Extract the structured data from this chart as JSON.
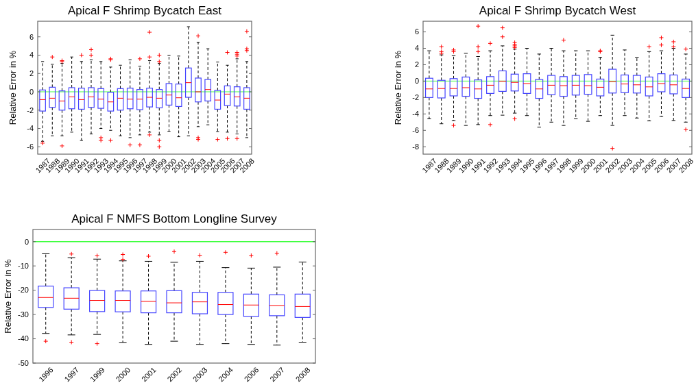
{
  "chart_data": [
    {
      "type": "box",
      "title": "Apical F Shrimp Bycatch East",
      "ylabel": "Relative Error in %",
      "categories": [
        "1987",
        "1988",
        "1989",
        "1990",
        "1991",
        "1992",
        "1993",
        "1994",
        "1995",
        "1996",
        "1997",
        "1998",
        "1999",
        "2000",
        "2001",
        "2002",
        "2003",
        "2004",
        "2005",
        "2006",
        "2007",
        "2008"
      ],
      "ylim": [
        -6.8,
        7.7
      ],
      "yticks": [
        -6,
        -4,
        -2,
        0,
        2,
        4,
        6
      ],
      "ref_lines": [
        {
          "axis": "y",
          "value": 0,
          "color": "#80ff80"
        }
      ],
      "series": [
        {
          "color": "#4444ff",
          "boxes": [
            {
              "low": -5.4,
              "q1": -2.1,
              "median": -0.85,
              "q3": 0.2,
              "high": 3.3,
              "outliers": [
                -5.6
              ]
            },
            {
              "low": -4.8,
              "q1": -1.7,
              "median": -0.7,
              "q3": 0.5,
              "high": 3.0,
              "outliers": [
                3.8
              ]
            },
            {
              "low": -4.8,
              "q1": -2.0,
              "median": -1.0,
              "q3": 0.1,
              "high": 3.1,
              "outliers": [
                3.4,
                3.3,
                -5.9
              ]
            },
            {
              "low": -4.4,
              "q1": -1.85,
              "median": -0.55,
              "q3": 0.45,
              "high": 3.8
            },
            {
              "low": -5.3,
              "q1": -1.9,
              "median": -0.85,
              "q3": 0.4,
              "high": 3.3,
              "outliers": [
                4.0
              ]
            },
            {
              "low": -4.6,
              "q1": -1.7,
              "median": -0.55,
              "q3": 0.45,
              "high": 3.5,
              "outliers": [
                4.0,
                4.6
              ]
            },
            {
              "low": -4.0,
              "q1": -1.8,
              "median": -0.8,
              "q3": 0.35,
              "high": 3.3,
              "outliers": [
                -5.0,
                -5.3
              ]
            },
            {
              "low": -4.2,
              "q1": -2.1,
              "median": -1.1,
              "q3": -0.05,
              "high": 2.7,
              "outliers": [
                3.6,
                3.5,
                -5.3
              ]
            },
            {
              "low": -4.8,
              "q1": -2.0,
              "median": -0.7,
              "q3": 0.35,
              "high": 2.9
            },
            {
              "low": -5.0,
              "q1": -1.85,
              "median": -0.8,
              "q3": 0.4,
              "high": 3.5,
              "outliers": [
                -5.8
              ]
            },
            {
              "low": -4.7,
              "q1": -1.95,
              "median": -0.8,
              "q3": 0.25,
              "high": 2.8,
              "outliers": [
                3.6,
                -5.8
              ]
            },
            {
              "low": -4.4,
              "q1": -1.65,
              "median": -0.6,
              "q3": 0.4,
              "high": 3.4,
              "outliers": [
                6.5,
                3.8,
                -4.7
              ]
            },
            {
              "low": -4.7,
              "q1": -1.75,
              "median": -0.7,
              "q3": 0.25,
              "high": 3.1,
              "outliers": [
                4.0,
                3.3,
                -5.3,
                -6.0
              ]
            },
            {
              "low": -4.3,
              "q1": -1.45,
              "median": -0.35,
              "q3": 0.9,
              "high": 4.0
            },
            {
              "low": -4.9,
              "q1": -1.6,
              "median": -0.65,
              "q3": 0.85,
              "high": 3.9
            },
            {
              "low": -4.8,
              "q1": -0.6,
              "median": 1.0,
              "q3": 2.6,
              "high": 7.1
            },
            {
              "low": -3.8,
              "q1": -1.1,
              "median": 0.0,
              "q3": 1.5,
              "high": 5.4,
              "outliers": [
                6.1,
                -5.0,
                -5.2
              ]
            },
            {
              "low": -3.6,
              "q1": -1.0,
              "median": 0.25,
              "q3": 1.35,
              "high": 4.7
            },
            {
              "low": -4.35,
              "q1": -1.9,
              "median": -0.9,
              "q3": 0.15,
              "high": 3.25,
              "outliers": [
                -5.2
              ]
            },
            {
              "low": -4.4,
              "q1": -1.5,
              "median": -0.25,
              "q3": 0.65,
              "high": 2.9,
              "outliers": [
                4.3,
                -5.1
              ]
            },
            {
              "low": -4.6,
              "q1": -1.55,
              "median": -0.55,
              "q3": 0.55,
              "high": 3.6,
              "outliers": [
                4.3,
                4.1,
                3.9,
                -5.1
              ]
            },
            {
              "low": -5.0,
              "q1": -1.9,
              "median": -0.7,
              "q3": 0.45,
              "high": 3.3,
              "outliers": [
                6.6,
                4.7,
                4.5
              ]
            }
          ]
        }
      ]
    },
    {
      "type": "box",
      "title": "Apical F Shrimp Bycatch West",
      "ylabel": "Relative Error in %",
      "categories": [
        "1987",
        "1988",
        "1989",
        "1990",
        "1991",
        "1992",
        "1993",
        "1994",
        "1995",
        "1996",
        "1997",
        "1998",
        "1999",
        "2000",
        "2001",
        "2002",
        "2003",
        "2004",
        "2005",
        "2006",
        "2007",
        "2008"
      ],
      "ylim": [
        -8.9,
        7.3
      ],
      "yticks": [
        -8,
        -6,
        -4,
        -2,
        0,
        2,
        4,
        6
      ],
      "ref_lines": [
        {
          "axis": "y",
          "value": 0,
          "color": "#80ff80"
        }
      ],
      "series": [
        {
          "color": "#4444ff",
          "boxes": [
            {
              "low": -4.6,
              "q1": -2.0,
              "median": -0.95,
              "q3": 0.35,
              "high": 3.7
            },
            {
              "low": -5.2,
              "q1": -2.05,
              "median": -0.9,
              "q3": 0.1,
              "high": 3.2,
              "outliers": [
                4.2,
                3.6,
                3.4
              ]
            },
            {
              "low": -4.8,
              "q1": -1.8,
              "median": -0.9,
              "q3": 0.3,
              "high": 3.1,
              "outliers": [
                3.8,
                3.6,
                -5.4
              ]
            },
            {
              "low": -5.4,
              "q1": -1.85,
              "median": -0.8,
              "q3": 0.5,
              "high": 3.4
            },
            {
              "low": -5.3,
              "q1": -2.1,
              "median": -0.95,
              "q3": 0.15,
              "high": 3.0,
              "outliers": [
                6.7,
                4.2,
                3.6
              ]
            },
            {
              "low": -4.2,
              "q1": -1.5,
              "median": -0.5,
              "q3": 0.55,
              "high": 3.7,
              "outliers": [
                4.6,
                -5.3
              ]
            },
            {
              "low": -4.15,
              "q1": -1.25,
              "median": 0.0,
              "q3": 1.25,
              "high": 4.3,
              "outliers": [
                6.5,
                5.4
              ]
            },
            {
              "low": -3.9,
              "q1": -1.2,
              "median": -0.15,
              "q3": 0.85,
              "high": 3.9,
              "outliers": [
                4.7,
                4.5,
                4.3,
                4.1,
                -4.6
              ]
            },
            {
              "low": -4.2,
              "q1": -1.5,
              "median": -0.3,
              "q3": 0.9,
              "high": 4.0
            },
            {
              "low": -5.6,
              "q1": -2.1,
              "median": -0.95,
              "q3": 0.2,
              "high": 3.3
            },
            {
              "low": -5.0,
              "q1": -1.65,
              "median": -0.5,
              "q3": 0.7,
              "high": 4.0
            },
            {
              "low": -5.4,
              "q1": -1.85,
              "median": -0.55,
              "q3": 0.55,
              "high": 3.7,
              "outliers": [
                5.0
              ]
            },
            {
              "low": -4.6,
              "q1": -1.7,
              "median": -0.5,
              "q3": 0.7,
              "high": 3.7
            },
            {
              "low": -4.9,
              "q1": -1.6,
              "median": -0.55,
              "q3": 0.8,
              "high": 3.7
            },
            {
              "low": -4.2,
              "q1": -1.8,
              "median": -0.75,
              "q3": 0.25,
              "high": 2.9,
              "outliers": [
                3.7,
                3.6
              ]
            },
            {
              "low": -5.4,
              "q1": -1.45,
              "median": -0.05,
              "q3": 1.45,
              "high": 5.6,
              "outliers": [
                -8.2
              ]
            },
            {
              "low": -4.2,
              "q1": -1.4,
              "median": -0.35,
              "q3": 0.75,
              "high": 3.8
            },
            {
              "low": -4.5,
              "q1": -1.45,
              "median": -0.45,
              "q3": 0.7,
              "high": 2.9
            },
            {
              "low": -4.85,
              "q1": -1.8,
              "median": -0.7,
              "q3": 0.5,
              "high": 3.6,
              "outliers": [
                4.2
              ]
            },
            {
              "low": -4.3,
              "q1": -1.3,
              "median": -0.3,
              "q3": 0.9,
              "high": 3.7,
              "outliers": [
                5.3,
                4.4
              ]
            },
            {
              "low": -4.8,
              "q1": -1.55,
              "median": -0.45,
              "q3": 0.75,
              "high": 4.0,
              "outliers": [
                4.8,
                4.2
              ]
            },
            {
              "low": -5.0,
              "q1": -2.0,
              "median": -0.9,
              "q3": 0.25,
              "high": 3.3,
              "outliers": [
                3.9,
                -5.9
              ]
            }
          ]
        }
      ]
    },
    {
      "type": "box",
      "title": "Apical F NMFS Bottom Longline Survey",
      "ylabel": "Relative Error in %",
      "categories": [
        "1996",
        "1997",
        "1999",
        "2000",
        "2001",
        "2002",
        "2003",
        "2004",
        "2006",
        "2007",
        "2008"
      ],
      "ylim": [
        -50,
        5
      ],
      "yticks": [
        -50,
        -40,
        -30,
        -20,
        -10,
        0
      ],
      "ref_lines": [
        {
          "axis": "y",
          "value": 0,
          "color": "#40ff40"
        }
      ],
      "series": [
        {
          "color": "#4444ff",
          "boxes": [
            {
              "low": -37.8,
              "q1": -27.1,
              "median": -23,
              "q3": -18.3,
              "high": -5,
              "outliers": [
                -41
              ]
            },
            {
              "low": -38.4,
              "q1": -27.8,
              "median": -23.3,
              "q3": -19,
              "high": -6.6,
              "outliers": [
                -5.1,
                -41.4
              ]
            },
            {
              "low": -38.2,
              "q1": -28.8,
              "median": -24.2,
              "q3": -20.1,
              "high": -7.2,
              "outliers": [
                -5.8,
                -42
              ]
            },
            {
              "low": -41.5,
              "q1": -28.9,
              "median": -24.2,
              "q3": -20.3,
              "high": -7.9,
              "outliers": [
                -5.3,
                -7.3
              ]
            },
            {
              "low": -42.3,
              "q1": -29.3,
              "median": -24.6,
              "q3": -20.3,
              "high": -8.1,
              "outliers": [
                -6
              ]
            },
            {
              "low": -41,
              "q1": -29.3,
              "median": -25.2,
              "q3": -20.2,
              "high": -8.5,
              "outliers": [
                -4.1
              ]
            },
            {
              "low": -42.3,
              "q1": -29.7,
              "median": -24.8,
              "q3": -20.9,
              "high": -8.1,
              "outliers": [
                -5.6
              ]
            },
            {
              "low": -42,
              "q1": -30,
              "median": -25.9,
              "q3": -20.9,
              "high": -10.7,
              "outliers": [
                -4.4
              ]
            },
            {
              "low": -42.3,
              "q1": -30.8,
              "median": -26.1,
              "q3": -21.6,
              "high": -10.9,
              "outliers": [
                -5.7
              ]
            },
            {
              "low": -42.6,
              "q1": -30.5,
              "median": -26.3,
              "q3": -21.9,
              "high": -10.5,
              "outliers": [
                -4.8
              ]
            },
            {
              "low": -41.4,
              "q1": -31.2,
              "median": -26.7,
              "q3": -21.6,
              "high": -8.4
            }
          ]
        }
      ]
    }
  ]
}
